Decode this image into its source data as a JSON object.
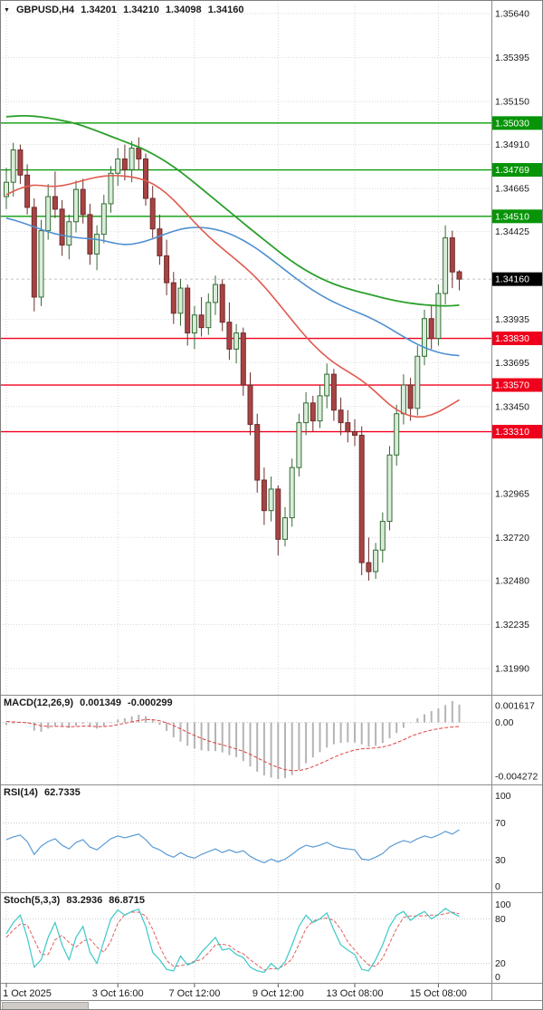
{
  "colors": {
    "bull_fill": "#d9ecd9",
    "bull_stroke": "#356b35",
    "bear_fill": "#a84444",
    "bear_stroke": "#6e2c2c",
    "ma_green": "#2ca02c",
    "ma_blue": "#5090d0",
    "ma_red": "#e05a4e",
    "sr_green": "#0a9b0a",
    "sr_red": "#f2001e",
    "badge_green": "#079407",
    "badge_red": "#ef001c",
    "badge_black": "#000000",
    "grid": "#d9d9d9",
    "level_dotted": "#c8c8c8",
    "macd_hist": "#b4b4b4",
    "macd_signal": "#e04040",
    "rsi_line": "#5b9bd5",
    "stoch_main": "#3cc8c8",
    "stoch_signal": "#e06060",
    "panel_border": "#8c8c8c",
    "axis_text": "#1a1a1a"
  },
  "main_chart": {
    "dropdown_icon": "▼",
    "title": {
      "symbol": "GBPUSD,H4",
      "open": "1.34201",
      "high": "1.34210",
      "low": "1.34098",
      "close": "1.34160"
    }
  },
  "panels": {
    "macd": {
      "name": "MACD(12,26,9)",
      "value_main": "0.001349",
      "value_signal": "-0.000299"
    },
    "rsi": {
      "name": "RSI(14)",
      "value": "62.7335"
    },
    "stoch": {
      "name": "Stoch(5,3,3)",
      "value_k": "83.2936",
      "value_d": "86.8715"
    }
  },
  "chart_data": [
    {
      "type": "candlestick",
      "symbol": "GBPUSD",
      "timeframe": "H4",
      "ylim": [
        1.3199,
        1.3564
      ],
      "price_ticks": [
        "1.35640",
        "1.35395",
        "1.35150",
        "1.34910",
        "1.34665",
        "1.34425",
        "1.33935",
        "1.33695",
        "1.33450",
        "1.32965",
        "1.32720",
        "1.32480",
        "1.32235",
        "1.31990"
      ],
      "x_labels": [
        {
          "label": "1 Oct 2025",
          "index": 0
        },
        {
          "label": "3 Oct 16:00",
          "index": 16
        },
        {
          "label": "7 Oct 12:00",
          "index": 27
        },
        {
          "label": "9 Oct 12:00",
          "index": 39
        },
        {
          "label": "13 Oct 08:00",
          "index": 50
        },
        {
          "label": "15 Oct 08:00",
          "index": 62
        }
      ],
      "resistance_lines": [
        {
          "label": "1.35030",
          "value": 1.3503
        },
        {
          "label": "1.34769",
          "value": 1.34769
        },
        {
          "label": "1.34510",
          "value": 1.3451
        }
      ],
      "support_lines": [
        {
          "label": "1.33830",
          "value": 1.3383
        },
        {
          "label": "1.33570",
          "value": 1.3357
        },
        {
          "label": "1.33310",
          "value": 1.3331
        }
      ],
      "current_price": {
        "label": "1.34160",
        "value": 1.3416
      },
      "candles": [
        [
          1.3462,
          1.3478,
          1.3455,
          1.347
        ],
        [
          1.347,
          1.3492,
          1.3462,
          1.3488
        ],
        [
          1.3488,
          1.3491,
          1.3469,
          1.3474
        ],
        [
          1.3474,
          1.348,
          1.3452,
          1.3456
        ],
        [
          1.3456,
          1.3461,
          1.3398,
          1.3406
        ],
        [
          1.3406,
          1.3449,
          1.3401,
          1.3443
        ],
        [
          1.3443,
          1.3469,
          1.3438,
          1.3462
        ],
        [
          1.3462,
          1.3476,
          1.345,
          1.3455
        ],
        [
          1.3455,
          1.346,
          1.3429,
          1.3435
        ],
        [
          1.3435,
          1.3452,
          1.3427,
          1.3448
        ],
        [
          1.3448,
          1.3471,
          1.3442,
          1.3466
        ],
        [
          1.3466,
          1.3472,
          1.3447,
          1.3452
        ],
        [
          1.3452,
          1.3458,
          1.3424,
          1.343
        ],
        [
          1.343,
          1.3446,
          1.3421,
          1.3441
        ],
        [
          1.3441,
          1.3463,
          1.3436,
          1.3458
        ],
        [
          1.3458,
          1.3479,
          1.3453,
          1.3475
        ],
        [
          1.3475,
          1.3489,
          1.3468,
          1.3483
        ],
        [
          1.3483,
          1.3491,
          1.3471,
          1.3477
        ],
        [
          1.3477,
          1.3493,
          1.347,
          1.3489
        ],
        [
          1.3489,
          1.3495,
          1.3477,
          1.3483
        ],
        [
          1.3483,
          1.3486,
          1.3457,
          1.3461
        ],
        [
          1.3461,
          1.3468,
          1.3439,
          1.3444
        ],
        [
          1.3444,
          1.3452,
          1.3424,
          1.3429
        ],
        [
          1.3429,
          1.3438,
          1.3407,
          1.3414
        ],
        [
          1.3414,
          1.342,
          1.3391,
          1.3397
        ],
        [
          1.3397,
          1.3416,
          1.339,
          1.3411
        ],
        [
          1.3411,
          1.3413,
          1.3379,
          1.3386
        ],
        [
          1.3386,
          1.3401,
          1.3377,
          1.3396
        ],
        [
          1.3396,
          1.3406,
          1.3384,
          1.3389
        ],
        [
          1.3389,
          1.3408,
          1.3385,
          1.3403
        ],
        [
          1.3403,
          1.3418,
          1.3396,
          1.3413
        ],
        [
          1.3413,
          1.3416,
          1.3387,
          1.3392
        ],
        [
          1.3392,
          1.3403,
          1.3371,
          1.3377
        ],
        [
          1.3377,
          1.3391,
          1.3369,
          1.3386
        ],
        [
          1.3386,
          1.3389,
          1.3351,
          1.3357
        ],
        [
          1.3357,
          1.3364,
          1.3329,
          1.3335
        ],
        [
          1.3335,
          1.3341,
          1.3297,
          1.3304
        ],
        [
          1.3304,
          1.3311,
          1.3279,
          1.3287
        ],
        [
          1.3287,
          1.3306,
          1.3281,
          1.3299
        ],
        [
          1.3299,
          1.3301,
          1.3262,
          1.3271
        ],
        [
          1.3271,
          1.3289,
          1.3267,
          1.3283
        ],
        [
          1.3283,
          1.3316,
          1.3278,
          1.3311
        ],
        [
          1.3311,
          1.3341,
          1.3306,
          1.3336
        ],
        [
          1.3336,
          1.3353,
          1.3329,
          1.3347
        ],
        [
          1.3347,
          1.3351,
          1.3331,
          1.3337
        ],
        [
          1.3337,
          1.3357,
          1.3333,
          1.3351
        ],
        [
          1.3351,
          1.3369,
          1.3344,
          1.3363
        ],
        [
          1.3363,
          1.3366,
          1.3337,
          1.3343
        ],
        [
          1.3343,
          1.335,
          1.3329,
          1.3336
        ],
        [
          1.3336,
          1.3343,
          1.3325,
          1.3331
        ],
        [
          1.3331,
          1.3338,
          1.3323,
          1.3329
        ],
        [
          1.3329,
          1.3334,
          1.3251,
          1.3258
        ],
        [
          1.3258,
          1.3272,
          1.3248,
          1.3253
        ],
        [
          1.3253,
          1.3269,
          1.3249,
          1.3265
        ],
        [
          1.3265,
          1.3286,
          1.3258,
          1.3281
        ],
        [
          1.3281,
          1.3323,
          1.3276,
          1.3318
        ],
        [
          1.3318,
          1.3346,
          1.3312,
          1.3341
        ],
        [
          1.3341,
          1.3363,
          1.3335,
          1.3357
        ],
        [
          1.3357,
          1.3361,
          1.3337,
          1.3344
        ],
        [
          1.3344,
          1.3379,
          1.334,
          1.3373
        ],
        [
          1.3373,
          1.3399,
          1.3368,
          1.3394
        ],
        [
          1.3394,
          1.3401,
          1.3377,
          1.3383
        ],
        [
          1.3383,
          1.3413,
          1.3379,
          1.3408
        ],
        [
          1.3408,
          1.3446,
          1.3402,
          1.3439
        ],
        [
          1.3439,
          1.3443,
          1.3411,
          1.342
        ],
        [
          1.34201,
          1.3421,
          1.34098,
          1.3416
        ]
      ],
      "overlays": [
        {
          "name": "ma-slow-green",
          "color_key": "ma_green",
          "width": 1.8,
          "values": [
            1.35065,
            1.35068,
            1.3507,
            1.3507,
            1.35068,
            1.35064,
            1.35058,
            1.35052,
            1.35044,
            1.35036,
            1.35026,
            1.35014,
            1.35,
            1.34986,
            1.34971,
            1.34956,
            1.34941,
            1.34926,
            1.34911,
            1.34896,
            1.34878,
            1.34858,
            1.34836,
            1.34812,
            1.34786,
            1.34758,
            1.34728,
            1.34697,
            1.34665,
            1.34633,
            1.34601,
            1.34569,
            1.34537,
            1.34505,
            1.34473,
            1.34441,
            1.3441,
            1.34379,
            1.34348,
            1.34317,
            1.34287,
            1.34259,
            1.34233,
            1.34209,
            1.34187,
            1.34167,
            1.34149,
            1.34133,
            1.34119,
            1.34107,
            1.34096,
            1.34086,
            1.34076,
            1.34066,
            1.34056,
            1.34047,
            1.34039,
            1.34032,
            1.34026,
            1.34021,
            1.34017,
            1.34014,
            1.34012,
            1.34011,
            1.34012,
            1.34015
          ]
        },
        {
          "name": "ma-mid-blue",
          "color_key": "ma_blue",
          "width": 1.6,
          "values": [
            1.345,
            1.3449,
            1.34478,
            1.34465,
            1.34451,
            1.34437,
            1.34424,
            1.34413,
            1.34405,
            1.34398,
            1.34392,
            1.34388,
            1.34385,
            1.34381,
            1.34374,
            1.34365,
            1.34357,
            1.34353,
            1.34355,
            1.34362,
            1.34372,
            1.34385,
            1.344,
            1.34414,
            1.34427,
            1.34438,
            1.34445,
            1.34448,
            1.34448,
            1.34444,
            1.34437,
            1.34427,
            1.34413,
            1.34396,
            1.34376,
            1.34353,
            1.34328,
            1.343,
            1.34271,
            1.34241,
            1.34211,
            1.34181,
            1.34152,
            1.34124,
            1.34098,
            1.34074,
            1.34052,
            1.34032,
            1.34014,
            1.33997,
            1.33981,
            1.33965,
            1.33948,
            1.33929,
            1.33908,
            1.33886,
            1.33862,
            1.33839,
            1.33817,
            1.33797,
            1.33779,
            1.33764,
            1.33752,
            1.33743,
            1.33737,
            1.33734
          ]
        },
        {
          "name": "ma-fast-red",
          "color_key": "ma_red",
          "width": 1.6,
          "values": [
            1.3463,
            1.3465,
            1.34666,
            1.34678,
            1.34684,
            1.34682,
            1.34678,
            1.34677,
            1.34681,
            1.34689,
            1.34699,
            1.3471,
            1.3472,
            1.34728,
            1.34734,
            1.34737,
            1.34737,
            1.34734,
            1.34729,
            1.34721,
            1.34709,
            1.34691,
            1.34667,
            1.34637,
            1.34601,
            1.34561,
            1.34519,
            1.34477,
            1.34437,
            1.34399,
            1.34364,
            1.34331,
            1.34299,
            1.34267,
            1.34234,
            1.34199,
            1.34161,
            1.34119,
            1.34074,
            1.34027,
            1.33979,
            1.33931,
            1.33884,
            1.33839,
            1.33797,
            1.33759,
            1.33725,
            1.33695,
            1.33669,
            1.33645,
            1.33621,
            1.33595,
            1.33565,
            1.33531,
            1.33495,
            1.33461,
            1.33433,
            1.33412,
            1.33398,
            1.33392,
            1.33394,
            1.33404,
            1.3342,
            1.33441,
            1.33464,
            1.33487
          ]
        }
      ]
    },
    {
      "type": "bar",
      "name": "MACD",
      "ylim": [
        -0.004272,
        0.001617
      ],
      "axis_ticks": [
        {
          "label": "0.001617",
          "value": 0.001617
        },
        {
          "label": "0.00",
          "value": 0
        },
        {
          "label": "-0.004272",
          "value": -0.004272
        }
      ],
      "histogram": [
        -0.0002,
        -8e-05,
        6e-05,
        -6e-05,
        -0.00062,
        -0.0007,
        -0.00046,
        -0.00026,
        -0.00032,
        -0.00042,
        -0.00026,
        -0.0001,
        -0.00032,
        -0.00046,
        -0.0003,
        -4e-05,
        0.00022,
        0.00032,
        0.00046,
        0.00058,
        0.00048,
        0.00018,
        -0.00018,
        -0.00064,
        -0.00112,
        -0.00144,
        -0.00176,
        -0.00196,
        -0.0021,
        -0.00216,
        -0.00216,
        -0.00226,
        -0.00246,
        -0.00262,
        -0.00292,
        -0.00332,
        -0.00372,
        -0.004,
        -0.00416,
        -0.004272,
        -0.0042,
        -0.00398,
        -0.00358,
        -0.00308,
        -0.00264,
        -0.00224,
        -0.0019,
        -0.00164,
        -0.00154,
        -0.0015,
        -0.0015,
        -0.00166,
        -0.00182,
        -0.00176,
        -0.00154,
        -0.0012,
        -0.0008,
        -0.0004,
        -4e-05,
        0.00032,
        0.00062,
        0.00086,
        0.00106,
        0.00132,
        0.001617,
        0.001349
      ],
      "signal": [
        8e-05,
        4e-05,
        1e-05,
        -1e-05,
        -0.00013,
        -0.00025,
        -0.0003,
        -0.00029,
        -0.0003,
        -0.00032,
        -0.00031,
        -0.00027,
        -0.00028,
        -0.00031,
        -0.00031,
        -0.00026,
        -0.00016,
        -6e-05,
        4e-05,
        0.00015,
        0.00022,
        0.00021,
        0.00013,
        -2e-05,
        -0.00024,
        -0.00048,
        -0.00074,
        -0.00098,
        -0.0012,
        -0.00139,
        -0.00155,
        -0.00169,
        -0.00184,
        -0.002,
        -0.00218,
        -0.00241,
        -0.00267,
        -0.00294,
        -0.00318,
        -0.0034,
        -0.00356,
        -0.00364,
        -0.00363,
        -0.00352,
        -0.00334,
        -0.00312,
        -0.00288,
        -0.00263,
        -0.00241,
        -0.00223,
        -0.00208,
        -0.00199,
        -0.00196,
        -0.00192,
        -0.00185,
        -0.00172,
        -0.00153,
        -0.00131,
        -0.00106,
        -0.00086,
        -0.0007,
        -0.00057,
        -0.00047,
        -0.00039,
        -0.00034,
        -0.000299
      ]
    },
    {
      "type": "line",
      "name": "RSI",
      "ylim": [
        0,
        100
      ],
      "levels": [
        70,
        30
      ],
      "axis_ticks": [
        {
          "label": "100",
          "value": 100
        },
        {
          "label": "70",
          "value": 70
        },
        {
          "label": "30",
          "value": 30
        },
        {
          "label": "0",
          "value": 0
        }
      ],
      "values": [
        52,
        55,
        57,
        50,
        36,
        45,
        50,
        53,
        46,
        42,
        49,
        52,
        44,
        41,
        47,
        53,
        56,
        54,
        56,
        58,
        52,
        44,
        41,
        36,
        33,
        38,
        34,
        32,
        36,
        39,
        42,
        38,
        41,
        38,
        40,
        34,
        30,
        27,
        31,
        28,
        31,
        36,
        42,
        46,
        44,
        46,
        49,
        45,
        43,
        42,
        41,
        31,
        30,
        33,
        37,
        44,
        48,
        51,
        49,
        53,
        56,
        54,
        57,
        61,
        58,
        62.7335
      ]
    },
    {
      "type": "line",
      "name": "Stochastic",
      "ylim": [
        0,
        100
      ],
      "levels": [
        80,
        20
      ],
      "axis_ticks": [
        {
          "label": "100",
          "value": 100
        },
        {
          "label": "80",
          "value": 80
        },
        {
          "label": "20",
          "value": 20
        },
        {
          "label": "0",
          "value": 0
        }
      ],
      "main": [
        60,
        75,
        85,
        55,
        15,
        25,
        55,
        75,
        45,
        25,
        55,
        70,
        35,
        20,
        50,
        80,
        92,
        85,
        90,
        93,
        70,
        35,
        25,
        12,
        10,
        30,
        18,
        22,
        35,
        45,
        55,
        38,
        40,
        32,
        28,
        15,
        10,
        8,
        20,
        12,
        22,
        45,
        70,
        85,
        75,
        80,
        88,
        65,
        45,
        38,
        32,
        12,
        10,
        25,
        45,
        70,
        85,
        90,
        78,
        85,
        90,
        80,
        86,
        94,
        88,
        83.2936
      ],
      "signal": [
        55,
        65,
        73,
        72,
        52,
        32,
        32,
        52,
        58,
        48,
        42,
        50,
        53,
        42,
        35,
        50,
        74,
        86,
        89,
        89,
        84,
        66,
        43,
        24,
        16,
        17,
        19,
        23,
        25,
        34,
        45,
        46,
        44,
        37,
        33,
        25,
        18,
        11,
        13,
        13,
        18,
        26,
        46,
        67,
        77,
        80,
        81,
        78,
        66,
        49,
        38,
        27,
        18,
        16,
        27,
        47,
        67,
        82,
        84,
        84,
        84,
        85,
        85,
        87,
        89,
        86.8715
      ]
    }
  ]
}
